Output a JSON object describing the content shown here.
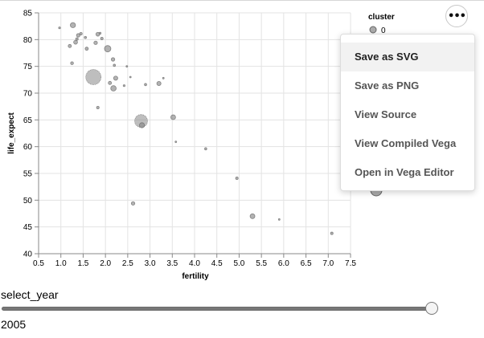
{
  "chart_data": {
    "type": "scatter",
    "xlabel": "fertility",
    "ylabel": "life_expect",
    "xlim": [
      0.5,
      7.5
    ],
    "ylim": [
      40,
      85
    ],
    "xticks": [
      "0.5",
      "1.0",
      "1.5",
      "2.0",
      "2.5",
      "3.0",
      "3.5",
      "4.0",
      "4.5",
      "5.0",
      "5.5",
      "6.0",
      "6.5",
      "7.0",
      "7.5"
    ],
    "yticks": [
      "40",
      "45",
      "50",
      "55",
      "60",
      "65",
      "70",
      "75",
      "80",
      "85"
    ],
    "grid": true,
    "legend": {
      "title": "cluster",
      "entries": [
        "0"
      ],
      "placement": "top-right"
    },
    "point_color": "#888888",
    "points": [
      {
        "x": 1.27,
        "y": 82.7,
        "r": 3.2
      },
      {
        "x": 1.33,
        "y": 79.5,
        "r": 2.4
      },
      {
        "x": 1.39,
        "y": 80.8,
        "r": 2.2
      },
      {
        "x": 1.45,
        "y": 81.1,
        "r": 1.6
      },
      {
        "x": 1.36,
        "y": 80.1,
        "r": 1.6
      },
      {
        "x": 1.2,
        "y": 78.8,
        "r": 2.0
      },
      {
        "x": 1.25,
        "y": 75.6,
        "r": 1.8
      },
      {
        "x": 0.97,
        "y": 82.2,
        "r": 1.2
      },
      {
        "x": 1.58,
        "y": 78.3,
        "r": 2.0
      },
      {
        "x": 1.55,
        "y": 80.4,
        "r": 1.4
      },
      {
        "x": 1.83,
        "y": 81.0,
        "r": 2.4
      },
      {
        "x": 1.78,
        "y": 79.4,
        "r": 2.2
      },
      {
        "x": 1.92,
        "y": 80.2,
        "r": 1.6
      },
      {
        "x": 1.88,
        "y": 81.2,
        "r": 1.2
      },
      {
        "x": 2.05,
        "y": 78.3,
        "r": 4.0
      },
      {
        "x": 1.73,
        "y": 73.0,
        "r": 9.5
      },
      {
        "x": 1.83,
        "y": 67.3,
        "r": 1.6
      },
      {
        "x": 2.17,
        "y": 76.3,
        "r": 2.2
      },
      {
        "x": 2.2,
        "y": 75.2,
        "r": 1.4
      },
      {
        "x": 2.23,
        "y": 72.8,
        "r": 2.6
      },
      {
        "x": 2.18,
        "y": 70.9,
        "r": 3.4
      },
      {
        "x": 2.1,
        "y": 71.9,
        "r": 2.0
      },
      {
        "x": 2.42,
        "y": 71.4,
        "r": 1.2
      },
      {
        "x": 2.48,
        "y": 75.0,
        "r": 1.0
      },
      {
        "x": 2.56,
        "y": 73.0,
        "r": 1.0
      },
      {
        "x": 2.8,
        "y": 64.8,
        "r": 8.0
      },
      {
        "x": 2.82,
        "y": 64.0,
        "r": 3.2
      },
      {
        "x": 2.9,
        "y": 71.6,
        "r": 1.4
      },
      {
        "x": 3.2,
        "y": 71.8,
        "r": 2.6
      },
      {
        "x": 3.3,
        "y": 72.8,
        "r": 1.0
      },
      {
        "x": 3.52,
        "y": 65.5,
        "r": 3.0
      },
      {
        "x": 3.58,
        "y": 60.9,
        "r": 1.0
      },
      {
        "x": 2.62,
        "y": 49.4,
        "r": 2.2
      },
      {
        "x": 4.25,
        "y": 59.6,
        "r": 1.4
      },
      {
        "x": 4.95,
        "y": 54.1,
        "r": 1.6
      },
      {
        "x": 5.3,
        "y": 47.0,
        "r": 3.0
      },
      {
        "x": 5.9,
        "y": 46.4,
        "r": 1.0
      },
      {
        "x": 7.08,
        "y": 43.8,
        "r": 1.6
      }
    ]
  },
  "actions": {
    "button_label": "•••",
    "menu": [
      "Save as SVG",
      "Save as PNG",
      "View Source",
      "View Compiled Vega",
      "Open in Vega Editor"
    ]
  },
  "slider": {
    "label": "select_year",
    "min": 1955,
    "max": 2005,
    "value": "2005"
  }
}
